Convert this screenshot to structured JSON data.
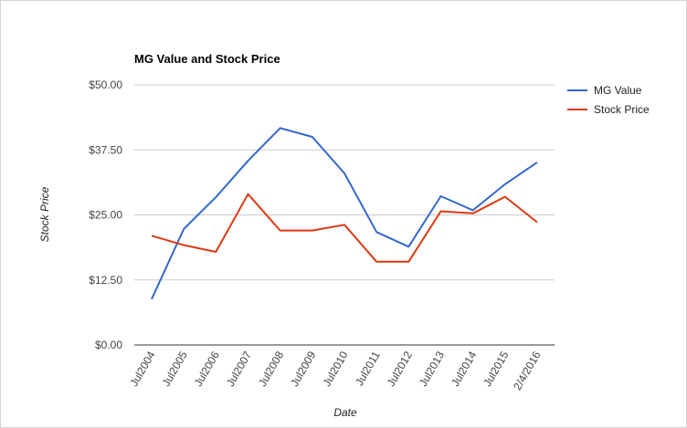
{
  "chart_data": {
    "type": "line",
    "title": "MG Value and Stock Price",
    "xlabel": "Date",
    "ylabel": "Stock Price",
    "categories": [
      "Jul2004",
      "Jul2005",
      "Jul2006",
      "Jul2007",
      "Jul2008",
      "Jul2009",
      "Jul2010",
      "Jul2011",
      "Jul2012",
      "Jul2013",
      "Jul2014",
      "Jul2015",
      "2/4/2016"
    ],
    "y_ticks": [
      "$0.00",
      "$12.50",
      "$25.00",
      "$37.50",
      "$50.00"
    ],
    "y_tick_values": [
      0,
      12.5,
      25,
      37.5,
      50
    ],
    "ylim": [
      0,
      50
    ],
    "grid": true,
    "legend_position": "right",
    "series": [
      {
        "name": "MG Value",
        "color": "#3366cc",
        "values": [
          8.8,
          22.3,
          28.4,
          35.4,
          41.7,
          40.0,
          33.0,
          21.7,
          18.9,
          28.6,
          25.9,
          30.9,
          35.1
        ]
      },
      {
        "name": "Stock Price",
        "color": "#dc3912",
        "values": [
          21.0,
          19.2,
          17.9,
          29.0,
          22.0,
          22.0,
          23.1,
          16.0,
          16.0,
          25.7,
          25.3,
          28.5,
          23.6
        ]
      }
    ]
  }
}
